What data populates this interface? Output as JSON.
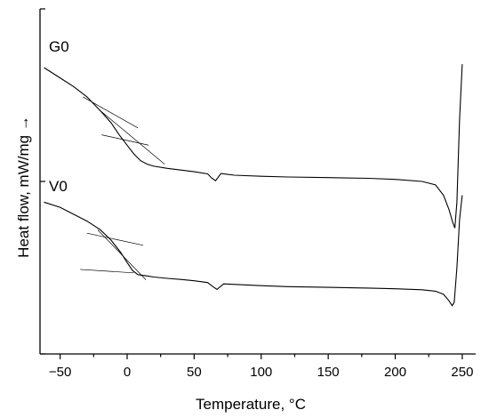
{
  "chart_data": {
    "type": "line",
    "title": "",
    "xlabel": "Temperature, °C",
    "ylabel": "Heat flow, mW/mg →",
    "xlim": [
      -65,
      260
    ],
    "ylim": [
      0,
      100
    ],
    "x_ticks": [
      -50,
      0,
      50,
      100,
      150,
      200,
      250
    ],
    "x_tick_labels": [
      "−50",
      "0",
      "50",
      "100",
      "150",
      "200",
      "250"
    ],
    "y_tick_labels_shown": false,
    "grid": false,
    "legend": "none",
    "series": [
      {
        "name": "G0",
        "x": [
          -62,
          -50,
          -40,
          -30,
          -20,
          -12,
          -6,
          0,
          5,
          10,
          15,
          20,
          30,
          40,
          50,
          60,
          63,
          66,
          70,
          80,
          100,
          120,
          150,
          180,
          200,
          220,
          230,
          236,
          240,
          243,
          244.5,
          246,
          248,
          250
        ],
        "y": [
          83,
          80,
          77.5,
          74.5,
          70.5,
          67,
          63.5,
          60.5,
          58,
          56,
          55,
          54.4,
          53.8,
          53.3,
          52.8,
          52.2,
          51,
          50.2,
          52.3,
          51.8,
          51.5,
          51.3,
          51.1,
          50.9,
          50.6,
          50,
          49,
          46,
          42,
          38,
          36.5,
          44,
          68,
          84
        ]
      },
      {
        "name": "V0",
        "x": [
          -62,
          -50,
          -40,
          -30,
          -20,
          -12,
          -5,
          0,
          4,
          8,
          15,
          20,
          30,
          40,
          50,
          60,
          64,
          67,
          72,
          100,
          120,
          150,
          180,
          200,
          220,
          230,
          236,
          240,
          242.5,
          244,
          246,
          248,
          250
        ],
        "y": [
          44,
          42.5,
          40.5,
          38.5,
          36,
          33,
          29.5,
          26.5,
          24.2,
          23,
          22.6,
          22.3,
          21.9,
          21.6,
          21.2,
          20.7,
          19.5,
          18.7,
          20.3,
          19.8,
          19.5,
          19.3,
          19.1,
          18.9,
          18.6,
          18.2,
          17.3,
          15.5,
          14,
          15,
          25,
          39,
          46
        ]
      }
    ],
    "tangent_lines": [
      {
        "series": "G0",
        "from": [
          -33,
          74.5
        ],
        "to": [
          8,
          65.5
        ]
      },
      {
        "series": "G0",
        "from": [
          -20,
          70.5
        ],
        "to": [
          28,
          55
        ]
      },
      {
        "series": "G0",
        "from": [
          -19,
          63.5
        ],
        "to": [
          16,
          60.5
        ]
      },
      {
        "series": "V0",
        "from": [
          -30,
          35
        ],
        "to": [
          12,
          31.5
        ]
      },
      {
        "series": "V0",
        "from": [
          -22,
          36
        ],
        "to": [
          14,
          21.5
        ]
      },
      {
        "series": "V0",
        "from": [
          -35,
          24.5
        ],
        "to": [
          5,
          23.5
        ]
      }
    ],
    "annotations": [
      "G0",
      "V0"
    ]
  }
}
